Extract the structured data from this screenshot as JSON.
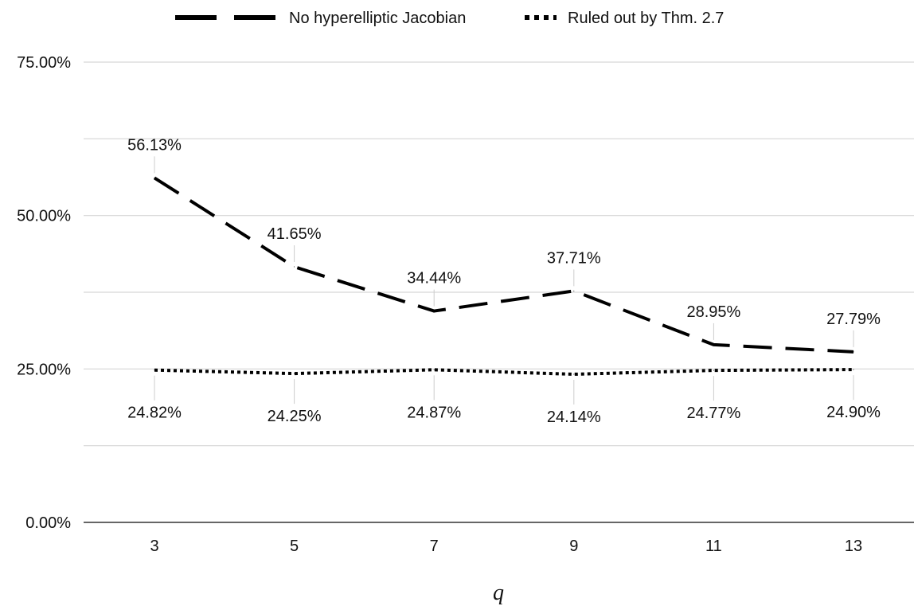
{
  "chart_data": {
    "type": "line",
    "title": "",
    "xlabel": "q",
    "ylabel": "",
    "categories": [
      "3",
      "5",
      "7",
      "9",
      "11",
      "13"
    ],
    "ylim": [
      0,
      75
    ],
    "yticks": [
      0,
      25,
      50,
      75
    ],
    "ytick_labels": [
      "0.00%",
      "25.00%",
      "50.00%",
      "75.00%"
    ],
    "grid": true,
    "legend_position": "top-center",
    "series": [
      {
        "name": "No hyperelliptic Jacobian",
        "style": "dashed",
        "color": "#000000",
        "values": [
          56.13,
          41.65,
          34.44,
          37.71,
          28.95,
          27.79
        ],
        "labels": [
          "56.13%",
          "41.65%",
          "34.44%",
          "37.71%",
          "28.95%",
          "27.79%"
        ]
      },
      {
        "name": "Ruled out by Thm. 2.7",
        "style": "dotted",
        "color": "#000000",
        "values": [
          24.82,
          24.25,
          24.87,
          24.14,
          24.77,
          24.9
        ],
        "labels": [
          "24.82%",
          "24.25%",
          "24.87%",
          "24.14%",
          "24.77%",
          "24.90%"
        ]
      }
    ]
  }
}
